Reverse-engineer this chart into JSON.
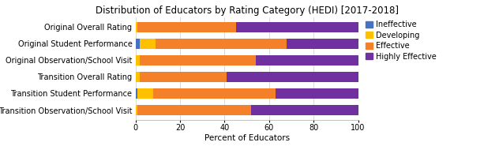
{
  "title": "Distribution of Educators by Rating Category (HEDI) [2017-2018]",
  "xlabel": "Percent of Educators",
  "categories": [
    "Transition Observation/School Visit",
    "Transition Student Performance",
    "Transition Overall Rating",
    "Original Observation/School Visit",
    "Original Student Performance",
    "Original Overall Rating"
  ],
  "series": {
    "Ineffective": [
      0,
      1,
      0,
      0,
      2,
      0
    ],
    "Developing": [
      1,
      7,
      2,
      2,
      7,
      1
    ],
    "Effective": [
      51,
      55,
      39,
      52,
      59,
      44
    ],
    "Highly Effective": [
      48,
      37,
      59,
      46,
      32,
      55
    ]
  },
  "colors": {
    "Ineffective": "#4472C4",
    "Developing": "#FFC000",
    "Effective": "#F4812A",
    "Highly Effective": "#7030A0"
  },
  "xlim": [
    0,
    100
  ],
  "xticks": [
    0,
    20,
    40,
    60,
    80,
    100
  ],
  "background_color": "#FFFFFF",
  "title_fontsize": 8.5,
  "label_fontsize": 7.5,
  "tick_fontsize": 7,
  "legend_fontsize": 7,
  "bar_height": 0.6
}
